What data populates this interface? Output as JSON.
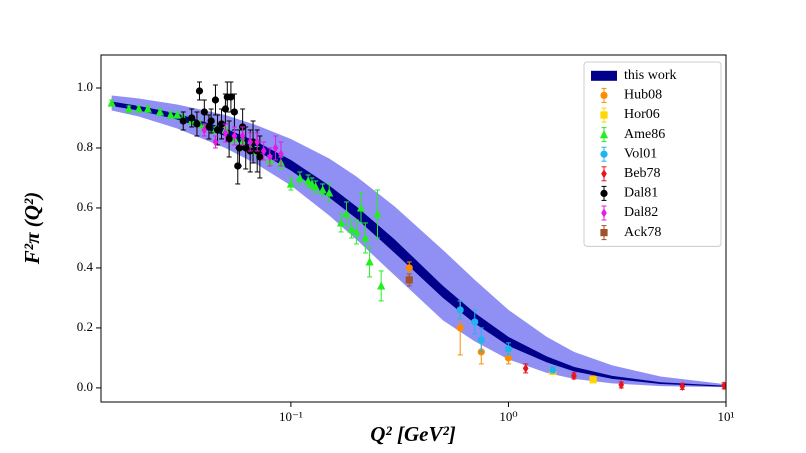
{
  "chart_data": {
    "type": "scatter",
    "x_label": "Q² [GeV²]",
    "y_label": "F²π (Q²)",
    "xscale": "log",
    "xlim": [
      0.0134,
      10
    ],
    "ylim": [
      -0.047,
      1.11
    ],
    "xticks": [
      {
        "value": 0.1,
        "label": "10⁻¹"
      },
      {
        "value": 1,
        "label": "10⁰"
      },
      {
        "value": 10,
        "label": "10¹"
      }
    ],
    "yticks": [
      {
        "value": 0,
        "label": "0.0"
      },
      0.2,
      0.4,
      0.6,
      0.8,
      {
        "value": 1,
        "label": "1.0"
      }
    ],
    "legend": "upper right",
    "band": {
      "name": "this work",
      "color": "#00008b",
      "outer_color": "#7b7bf2",
      "x": [
        0.015,
        0.02,
        0.03,
        0.05,
        0.07,
        0.1,
        0.15,
        0.2,
        0.3,
        0.5,
        0.7,
        1,
        1.5,
        2,
        3,
        5,
        10
      ],
      "outer_upper": [
        0.975,
        0.965,
        0.945,
        0.91,
        0.875,
        0.83,
        0.765,
        0.705,
        0.605,
        0.46,
        0.36,
        0.26,
        0.17,
        0.12,
        0.075,
        0.038,
        0.012
      ],
      "outer_lower": [
        0.925,
        0.905,
        0.865,
        0.8,
        0.745,
        0.675,
        0.575,
        0.495,
        0.375,
        0.225,
        0.155,
        0.095,
        0.05,
        0.03,
        0.015,
        0.006,
        0.002
      ],
      "inner_upper": [
        0.955,
        0.94,
        0.915,
        0.865,
        0.82,
        0.76,
        0.675,
        0.605,
        0.495,
        0.34,
        0.25,
        0.17,
        0.105,
        0.07,
        0.04,
        0.019,
        0.007
      ],
      "inner_lower": [
        0.94,
        0.925,
        0.895,
        0.84,
        0.79,
        0.725,
        0.635,
        0.565,
        0.45,
        0.3,
        0.215,
        0.14,
        0.085,
        0.055,
        0.03,
        0.013,
        0.004
      ]
    },
    "series": [
      {
        "name": "Hub08",
        "color": "#ff8c00",
        "marker": "circle",
        "x": [
          0.35,
          0.6,
          0.75,
          1.0,
          1.6,
          2.45
        ],
        "values": [
          0.4,
          0.2,
          0.12,
          0.1,
          0.06,
          0.03
        ],
        "errors": [
          0.02,
          0.09,
          0.04,
          0.02,
          0.01,
          0.01
        ]
      },
      {
        "name": "Hor06",
        "color": "#ffd700",
        "marker": "square",
        "x": [
          1.6,
          2.45
        ],
        "values": [
          0.055,
          0.027
        ],
        "errors": [
          0.008,
          0.006
        ]
      },
      {
        "name": "Ame86",
        "color": "#22ee22",
        "marker": "triangle",
        "x": [
          0.015,
          0.018,
          0.02,
          0.022,
          0.025,
          0.028,
          0.03,
          0.032,
          0.035,
          0.038,
          0.04,
          0.045,
          0.05,
          0.055,
          0.06,
          0.065,
          0.07,
          0.08,
          0.09,
          0.1,
          0.11,
          0.12,
          0.125,
          0.13,
          0.14,
          0.15,
          0.17,
          0.18,
          0.19,
          0.2,
          0.21,
          0.22,
          0.23,
          0.25,
          0.26
        ],
        "values": [
          0.95,
          0.93,
          0.93,
          0.93,
          0.92,
          0.91,
          0.91,
          0.9,
          0.89,
          0.88,
          0.87,
          0.86,
          0.86,
          0.83,
          0.82,
          0.8,
          0.79,
          0.76,
          0.75,
          0.68,
          0.7,
          0.69,
          0.68,
          0.67,
          0.66,
          0.65,
          0.55,
          0.58,
          0.53,
          0.52,
          0.6,
          0.5,
          0.42,
          0.58,
          0.34
        ],
        "errors": [
          0.01,
          0.01,
          0.01,
          0.01,
          0.01,
          0.01,
          0.01,
          0.01,
          0.01,
          0.01,
          0.01,
          0.01,
          0.01,
          0.01,
          0.01,
          0.015,
          0.015,
          0.015,
          0.02,
          0.02,
          0.02,
          0.02,
          0.02,
          0.02,
          0.02,
          0.03,
          0.03,
          0.04,
          0.03,
          0.04,
          0.05,
          0.05,
          0.05,
          0.08,
          0.05
        ]
      },
      {
        "name": "Vol01",
        "color": "#1eb4f0",
        "marker": "circle",
        "x": [
          0.6,
          0.7,
          0.75,
          1.0,
          1.6
        ],
        "values": [
          0.26,
          0.22,
          0.16,
          0.13,
          0.06
        ],
        "errors": [
          0.03,
          0.04,
          0.04,
          0.02,
          0.01
        ]
      },
      {
        "name": "Beb78",
        "color": "#e8141e",
        "marker": "diamond",
        "x": [
          1.2,
          2.0,
          3.3,
          6.3,
          9.8
        ],
        "values": [
          0.065,
          0.04,
          0.01,
          0.005,
          0.007
        ],
        "errors": [
          0.015,
          0.01,
          0.01,
          0.01,
          0.01
        ]
      },
      {
        "name": "Dal81",
        "color": "#000000",
        "marker": "circle",
        "x": [
          0.032,
          0.035,
          0.037,
          0.038,
          0.04,
          0.042,
          0.043,
          0.045,
          0.046,
          0.048,
          0.05,
          0.051,
          0.052,
          0.053,
          0.055,
          0.057,
          0.058,
          0.06,
          0.062,
          0.065,
          0.067,
          0.07,
          0.072
        ],
        "values": [
          0.89,
          0.9,
          0.88,
          0.99,
          0.92,
          0.87,
          0.89,
          0.96,
          0.86,
          0.88,
          0.93,
          0.97,
          0.83,
          0.97,
          0.92,
          0.74,
          0.8,
          0.87,
          0.8,
          0.79,
          0.82,
          0.79,
          0.77
        ],
        "errors": [
          0.03,
          0.03,
          0.04,
          0.03,
          0.04,
          0.04,
          0.04,
          0.05,
          0.05,
          0.05,
          0.05,
          0.05,
          0.06,
          0.05,
          0.06,
          0.06,
          0.06,
          0.06,
          0.07,
          0.07,
          0.07,
          0.07,
          0.07
        ]
      },
      {
        "name": "Dal82",
        "color": "#e619e6",
        "marker": "diamond",
        "x": [
          0.04,
          0.045,
          0.05,
          0.055,
          0.06,
          0.065,
          0.07,
          0.075,
          0.08,
          0.085,
          0.09
        ],
        "values": [
          0.86,
          0.82,
          0.85,
          0.84,
          0.84,
          0.82,
          0.82,
          0.79,
          0.77,
          0.8,
          0.78
        ],
        "errors": [
          0.02,
          0.02,
          0.03,
          0.03,
          0.03,
          0.03,
          0.03,
          0.03,
          0.03,
          0.04,
          0.04
        ]
      },
      {
        "name": "Ack78",
        "color": "#a0522d",
        "marker": "square",
        "x": [
          0.35
        ],
        "values": [
          0.36
        ],
        "errors": [
          0.02
        ]
      }
    ]
  }
}
